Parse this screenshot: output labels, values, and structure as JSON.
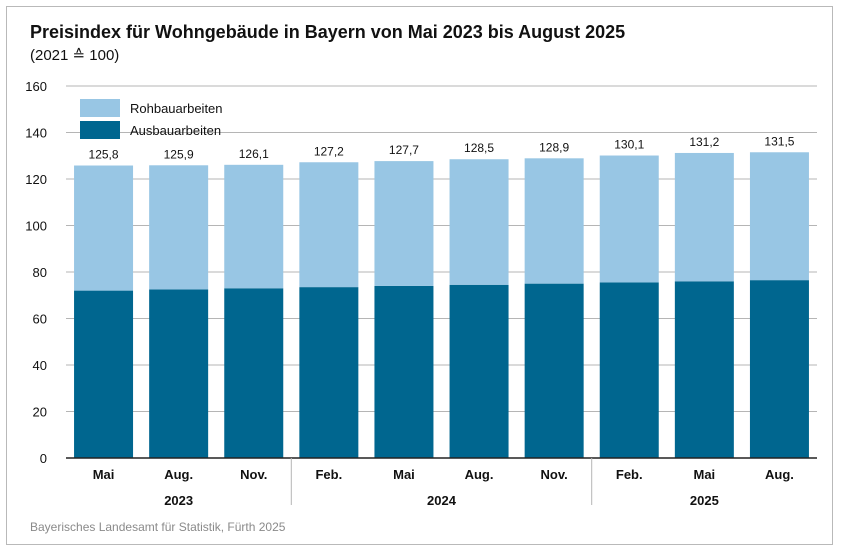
{
  "header": {
    "title": "Preisindex für Wohngebäude in Bayern von Mai 2023 bis August 2025",
    "subtitle": "(2021 ≙ 100)"
  },
  "footer": {
    "source": "Bayerisches Landesamt für Statistik, Fürth 2025"
  },
  "colors": {
    "rohbau": "#98c6e4",
    "ausbau": "#00668f",
    "grid": "#b5b5b5",
    "axis": "#222222"
  },
  "chart_data": {
    "type": "bar",
    "stacked": true,
    "title": "Preisindex für Wohngebäude in Bayern von Mai 2023 bis August 2025",
    "subtitle": "(2021 ≙ 100)",
    "categories": [
      "Mai",
      "Aug.",
      "Nov.",
      "Feb.",
      "Mai",
      "Aug.",
      "Nov.",
      "Feb.",
      "Mai",
      "Aug."
    ],
    "year_groups": [
      {
        "label": "2023",
        "count": 3
      },
      {
        "label": "2024",
        "count": 4
      },
      {
        "label": "2025",
        "count": 3
      }
    ],
    "series": [
      {
        "name": "Ausbauarbeiten",
        "values": [
          72,
          72.5,
          73,
          73.5,
          74,
          74.5,
          75,
          75.5,
          76,
          76.5
        ]
      },
      {
        "name": "Rohbauarbeiten",
        "values": [
          53.8,
          53.4,
          53.1,
          53.7,
          53.7,
          54,
          53.9,
          54.6,
          55.2,
          55
        ]
      }
    ],
    "totals": [
      125.8,
      125.9,
      126.1,
      127.2,
      127.7,
      128.5,
      128.9,
      130.1,
      131.2,
      131.5
    ],
    "total_labels": [
      "125,8",
      "125,9",
      "126,1",
      "127,2",
      "127,7",
      "128,5",
      "128,9",
      "130,1",
      "131,2",
      "131,5"
    ],
    "ylim": [
      0,
      160
    ],
    "yticks": [
      0,
      20,
      40,
      60,
      80,
      100,
      120,
      140,
      160
    ],
    "grid": true,
    "legend": {
      "position": "top-left",
      "entries": [
        "Rohbauarbeiten",
        "Ausbauarbeiten"
      ]
    }
  }
}
